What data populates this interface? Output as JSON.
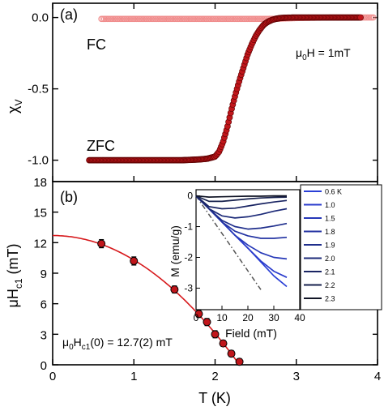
{
  "chart_data": [
    {
      "type": "scatter",
      "panel": "(a)",
      "ylabel": "χ",
      "ylabel_sub": "V",
      "xlim": [
        0,
        4
      ],
      "ylim": [
        -1.15,
        0.1
      ],
      "yticks": [
        "0.0",
        "-0.5",
        "-1.0"
      ],
      "annotation_fc": "FC",
      "annotation_zfc": "ZFC",
      "annotation_field": "μ0H = 1mT",
      "series": [
        {
          "name": "FC",
          "color": "#f08c8c",
          "x": [
            0.6,
            0.8,
            1.0,
            1.2,
            1.4,
            1.6,
            1.8,
            2.0,
            2.2,
            2.4,
            2.6,
            2.8,
            3.0,
            3.2,
            3.4,
            3.6,
            3.8,
            3.95
          ],
          "y": [
            -0.01,
            -0.01,
            -0.01,
            -0.01,
            -0.01,
            -0.01,
            -0.01,
            -0.01,
            -0.01,
            -0.01,
            -0.01,
            -0.008,
            -0.004,
            -0.002,
            0,
            0,
            0,
            0
          ]
        },
        {
          "name": "ZFC",
          "color": "#c0161b",
          "x": [
            0.45,
            0.6,
            0.8,
            1.0,
            1.2,
            1.4,
            1.6,
            1.8,
            1.9,
            2.0,
            2.05,
            2.1,
            2.15,
            2.2,
            2.25,
            2.3,
            2.35,
            2.4,
            2.45,
            2.5,
            2.55,
            2.6,
            2.65,
            2.7,
            2.75,
            2.8,
            2.85,
            2.9,
            3.0,
            3.2,
            3.4,
            3.6,
            3.8
          ],
          "y": [
            -1.0,
            -1.0,
            -1.0,
            -1.0,
            -1.0,
            -1.0,
            -1.0,
            -0.995,
            -0.99,
            -0.975,
            -0.94,
            -0.87,
            -0.77,
            -0.65,
            -0.54,
            -0.44,
            -0.35,
            -0.26,
            -0.19,
            -0.13,
            -0.085,
            -0.05,
            -0.03,
            -0.017,
            -0.009,
            -0.004,
            -0.002,
            -0.001,
            0,
            0,
            0,
            0,
            0
          ]
        }
      ]
    },
    {
      "type": "scatter",
      "panel": "(b)",
      "xlabel": "T (K)",
      "ylabel": "μH",
      "ylabel_sub": "c1",
      "ylabel_unit": " (mT)",
      "xlim": [
        0,
        4
      ],
      "ylim": [
        0,
        18
      ],
      "xticks": [
        "0",
        "1",
        "2",
        "3",
        "4"
      ],
      "yticks": [
        "0",
        "3",
        "6",
        "9",
        "12",
        "15",
        "18"
      ],
      "annotation_fit": "μ0Hc1(0) = 12.7(2) mT",
      "fit_Hc1_0": 12.7,
      "fit_Tc": 2.3,
      "series": [
        {
          "name": "data",
          "color": "#c0161b",
          "x": [
            0.6,
            1.0,
            1.5,
            1.8,
            1.9,
            2.0,
            2.1,
            2.2,
            2.3
          ],
          "y": [
            11.9,
            10.2,
            7.4,
            5.0,
            4.2,
            3.0,
            2.1,
            1.1,
            0.3
          ],
          "err": [
            0.4,
            0.4,
            0.35,
            0.35,
            0.35,
            0.35,
            0.3,
            0.3,
            0.3
          ]
        }
      ]
    },
    {
      "type": "line",
      "panel": "inset",
      "xlabel": "Field (mT)",
      "ylabel": "M (emu/g)",
      "xlim": [
        0,
        40
      ],
      "ylim": [
        -3.7,
        0.2
      ],
      "xticks": [
        "0",
        "10",
        "20",
        "30",
        "40"
      ],
      "yticks": [
        "0",
        "-1",
        "-2",
        "-3"
      ],
      "series": [
        {
          "name": "0.6 K",
          "color": "#2a3fd6",
          "x": [
            0,
            5,
            10,
            15,
            20,
            25,
            30,
            35
          ],
          "y": [
            0,
            -0.42,
            -0.85,
            -1.28,
            -1.7,
            -2.15,
            -2.6,
            -2.95
          ]
        },
        {
          "name": "1.0",
          "color": "#2a3bcc",
          "x": [
            0,
            5,
            10,
            15,
            20,
            25,
            30,
            35
          ],
          "y": [
            0,
            -0.42,
            -0.85,
            -1.28,
            -1.7,
            -2.12,
            -2.45,
            -2.65
          ]
        },
        {
          "name": "1.5",
          "color": "#2638b8",
          "x": [
            0,
            5,
            10,
            15,
            20,
            25,
            30,
            35
          ],
          "y": [
            0,
            -0.42,
            -0.85,
            -1.28,
            -1.6,
            -1.85,
            -2.0,
            -2.05
          ]
        },
        {
          "name": "1.8",
          "color": "#2333a2",
          "x": [
            0,
            5,
            10,
            15,
            20,
            25,
            30,
            35
          ],
          "y": [
            0,
            -0.42,
            -0.85,
            -1.15,
            -1.3,
            -1.38,
            -1.38,
            -1.35
          ]
        },
        {
          "name": "1.9",
          "color": "#1f2e8c",
          "x": [
            0,
            5,
            10,
            15,
            20,
            25,
            30,
            35
          ],
          "y": [
            0,
            -0.42,
            -0.8,
            -1.0,
            -1.08,
            -1.05,
            -0.98,
            -0.9
          ]
        },
        {
          "name": "2.0",
          "color": "#1c2a78",
          "x": [
            0,
            5,
            10,
            15,
            20,
            25,
            30,
            35
          ],
          "y": [
            0,
            -0.42,
            -0.65,
            -0.72,
            -0.68,
            -0.6,
            -0.5,
            -0.42
          ]
        },
        {
          "name": "2.1",
          "color": "#1a2563",
          "x": [
            0,
            5,
            10,
            15,
            20,
            25,
            30,
            35
          ],
          "y": [
            0,
            -0.35,
            -0.42,
            -0.4,
            -0.33,
            -0.26,
            -0.2,
            -0.15
          ]
        },
        {
          "name": "2.2",
          "color": "#16204c",
          "x": [
            0,
            5,
            10,
            15,
            20,
            25,
            30,
            35
          ],
          "y": [
            0,
            -0.18,
            -0.18,
            -0.14,
            -0.1,
            -0.07,
            -0.05,
            -0.04
          ]
        },
        {
          "name": "2.3",
          "color": "#111526",
          "x": [
            0,
            5,
            10,
            15,
            20,
            25,
            30,
            35
          ],
          "y": [
            0,
            -0.04,
            -0.03,
            -0.02,
            -0.01,
            -0.01,
            0,
            0
          ]
        }
      ],
      "fit_line": {
        "x": [
          0,
          25
        ],
        "y": [
          0,
          -3.05
        ],
        "color": "#555555"
      }
    }
  ]
}
